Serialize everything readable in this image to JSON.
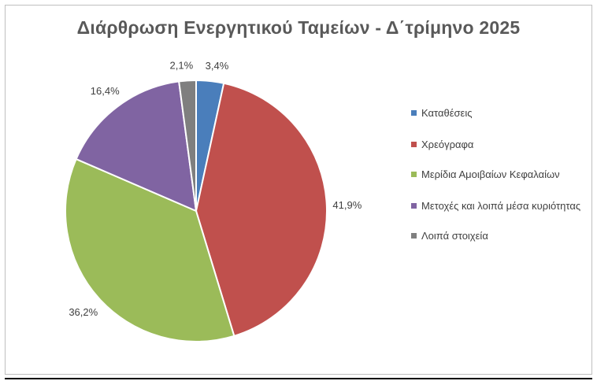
{
  "chart_data": {
    "type": "pie",
    "title": "Διάρθρωση Ενεργητικού Ταμείων - Δ΄τρίμηνο 2025",
    "slices": [
      {
        "name": "Καταθέσεις",
        "value": 3.4,
        "label": "3,4%",
        "color": "#4a7ebb"
      },
      {
        "name": "Χρεόγραφα",
        "value": 41.9,
        "label": "41,9%",
        "color": "#c0504d"
      },
      {
        "name": "Μερίδια Αμοιβαίων Κεφαλαίων",
        "value": 36.2,
        "label": "36,2%",
        "color": "#9bbb59"
      },
      {
        "name": "Μετοχές και λοιπά μέσα κυριότητας",
        "value": 16.4,
        "label": "16,4%",
        "color": "#8064a2"
      },
      {
        "name": "Λοιπά στοιχεία",
        "value": 2.1,
        "label": "2,1%",
        "color": "#7f7f7f"
      }
    ],
    "start_angle": "top, clockwise",
    "legend_position": "right"
  }
}
